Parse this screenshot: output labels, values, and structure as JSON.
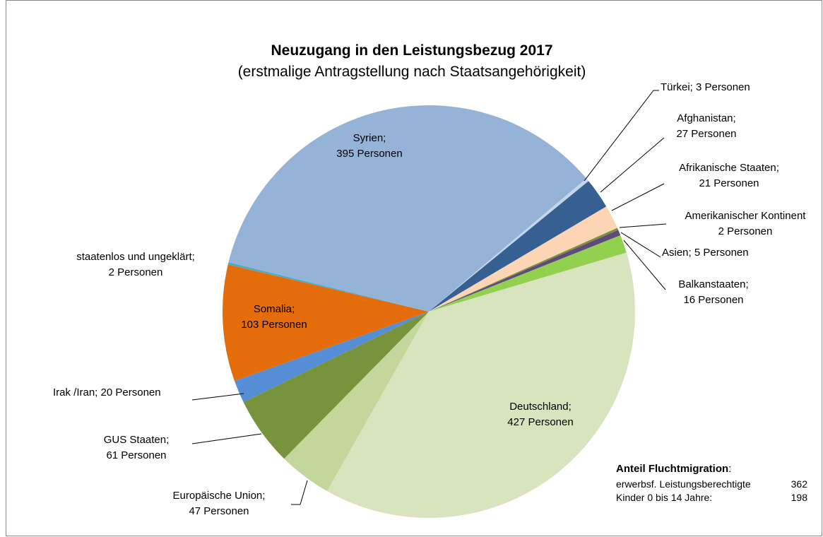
{
  "chart_data": {
    "type": "pie",
    "title": "Neuzugang in den Leistungsbezug 2017",
    "subtitle": "(erstmalige Antragstellung nach Staatsangehörigkeit)",
    "categories": [
      "Türkei;",
      "Afghanistan;",
      "Afrikanische Staaten;",
      "Amerikanischer Kontinent",
      "Asien;",
      "Balkanstaaten;",
      "Deutschland;",
      "Europäische Union;",
      "GUS Staaten;",
      "Irak /Iran;",
      "Somalia;",
      "staatenlos und ungeklärt;",
      "Syrien;"
    ],
    "values": [
      3,
      27,
      21,
      2,
      5,
      16,
      427,
      47,
      61,
      20,
      103,
      2,
      395
    ],
    "value_labels": [
      "3 Personen",
      "27 Personen",
      "21 Personen",
      "2 Personen",
      "5 Personen",
      "16 Personen",
      "427 Personen",
      "47 Personen",
      "61 Personen",
      "20 Personen",
      "103 Personen",
      "2 Personen",
      "395 Personen"
    ],
    "colors": [
      "#c6d6ea",
      "#376092",
      "#fcd5b5",
      "#77933c",
      "#604a7b",
      "#92d050",
      "#d7e4bd",
      "#c3d69b",
      "#77933c",
      "#558ed5",
      "#e46c0a",
      "#4bacc6",
      "#95b3d7"
    ],
    "annotation": {
      "title": "Anteil Fluchtmigration",
      "colon": ":",
      "rows": [
        {
          "label": "erwerbsf. Leistungsberechtigte",
          "value": 362
        },
        {
          "label": "Kinder 0 bis 14 Jahre:",
          "value": 198
        }
      ]
    }
  }
}
